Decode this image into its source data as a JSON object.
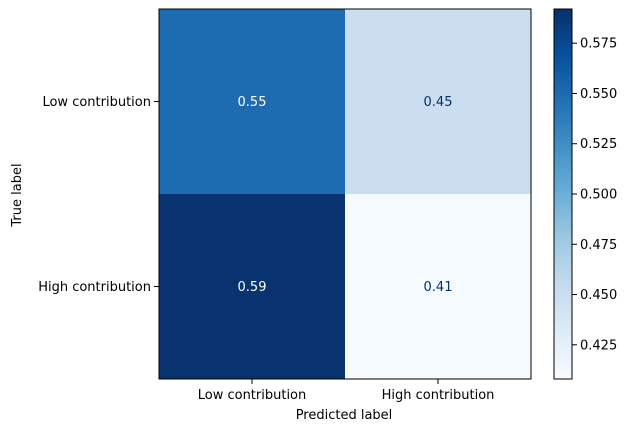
{
  "chart_data": {
    "type": "heatmap",
    "title": "",
    "xlabel": "Predicted label",
    "ylabel": "True label",
    "x_categories": [
      "Low contribution",
      "High contribution"
    ],
    "y_categories": [
      "Low contribution",
      "High contribution"
    ],
    "values": [
      [
        0.55,
        0.45
      ],
      [
        0.59,
        0.41
      ]
    ],
    "value_labels": [
      [
        "0.55",
        "0.45"
      ],
      [
        "0.59",
        "0.41"
      ]
    ],
    "colormap": "Blues",
    "colorbar": {
      "range": [
        0.408,
        0.592
      ],
      "ticks": [
        0.425,
        0.45,
        0.475,
        0.5,
        0.525,
        0.55,
        0.575
      ],
      "tick_labels": [
        "0.425",
        "0.450",
        "0.475",
        "0.500",
        "0.525",
        "0.550",
        "0.575"
      ]
    },
    "text_colors": {
      "dark_cell": "#ffffff",
      "light_cell": "#08306b"
    }
  }
}
